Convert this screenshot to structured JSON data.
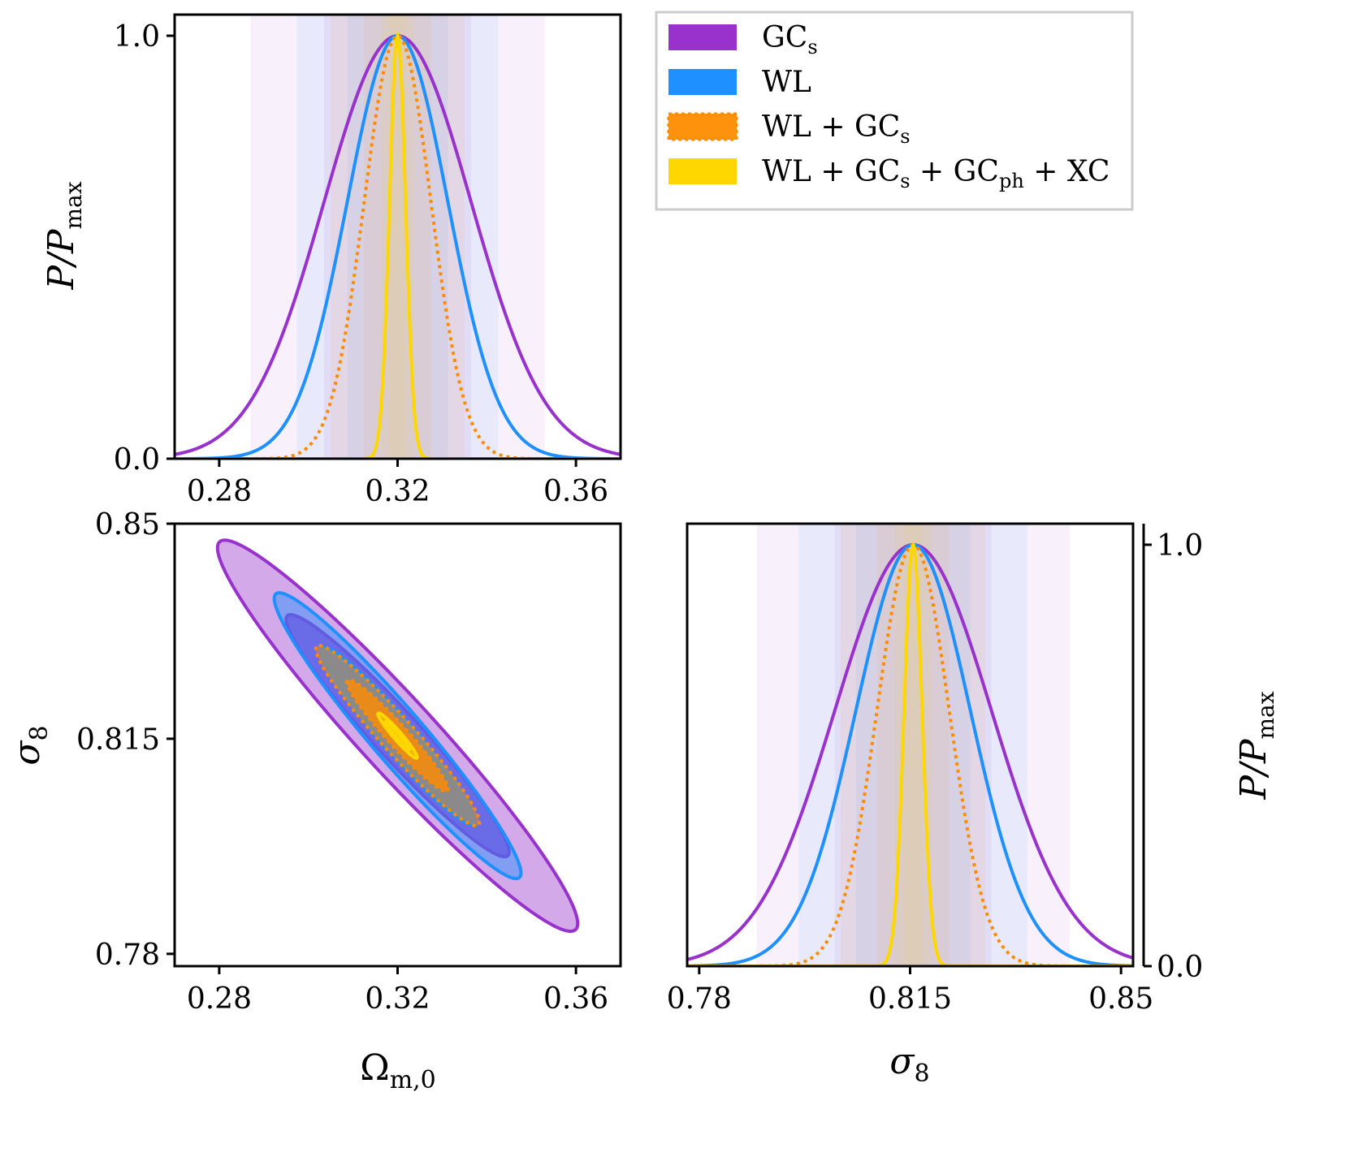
{
  "colors": {
    "gcs": "#9932CC",
    "wl": "#1E90FF",
    "wl_gcs": "#FF8C00",
    "all": "#FFD700"
  },
  "legend": {
    "entries": [
      {
        "key": "gcs",
        "main": "GC",
        "sub": "s",
        "tail": ""
      },
      {
        "key": "wl",
        "main": "WL",
        "sub": "",
        "tail": ""
      },
      {
        "key": "wl_gcs",
        "main": "WL + GC",
        "sub": "s",
        "tail": ""
      },
      {
        "key": "all",
        "main": "WL + GC",
        "sub": "s",
        "mid": " + GC",
        "sub2": "ph",
        "tail": " + XC"
      }
    ]
  },
  "chart_data": [
    {
      "type": "line",
      "panel": "top-left",
      "title": "",
      "xlabel": "",
      "ylabel": "P/Pmax",
      "ylabel_main": "P/P",
      "ylabel_sub": "max",
      "xlim": [
        0.27,
        0.37
      ],
      "ylim": [
        0.0,
        1.05
      ],
      "xticks": [
        "0.28",
        "0.32",
        "0.36"
      ],
      "yticks": [
        "0.0",
        "1.0"
      ],
      "center": 0.32,
      "series": [
        {
          "name": "GCs",
          "key": "gcs",
          "sigma": 0.0165,
          "style": "solid"
        },
        {
          "name": "WL",
          "key": "wl",
          "sigma": 0.0113,
          "style": "solid"
        },
        {
          "name": "WL + GCs",
          "key": "wl_gcs",
          "sigma": 0.0075,
          "style": "dotted"
        },
        {
          "name": "WL + GCs + GCph + XC",
          "key": "all",
          "sigma": 0.0018,
          "style": "solid"
        }
      ]
    },
    {
      "type": "contour",
      "panel": "bottom-left",
      "xlabel": "Ωm,0",
      "xlabel_main": "Ω",
      "xlabel_sub": "m,0",
      "ylabel": "σ8",
      "ylabel_main": "σ",
      "ylabel_sub": "8",
      "xlim": [
        0.27,
        0.37
      ],
      "ylim": [
        0.778,
        0.85
      ],
      "xticks": [
        "0.28",
        "0.32",
        "0.36"
      ],
      "yticks": [
        "0.78",
        "0.815",
        "0.85"
      ],
      "center": [
        0.32,
        0.8155
      ],
      "correlation": -0.96,
      "series": [
        {
          "name": "GCs",
          "key": "gcs",
          "sigma_x": 0.0165,
          "sigma_y": 0.013,
          "style": "solid"
        },
        {
          "name": "WL",
          "key": "wl",
          "sigma_x": 0.0113,
          "sigma_y": 0.0095,
          "style": "solid"
        },
        {
          "name": "WL + GCs",
          "key": "wl_gcs",
          "sigma_x": 0.0075,
          "sigma_y": 0.006,
          "style": "dotted"
        },
        {
          "name": "WL + GCs + GCph + XC",
          "key": "all",
          "sigma_x": 0.0018,
          "sigma_y": 0.0015,
          "style": "solid"
        }
      ]
    },
    {
      "type": "line",
      "panel": "bottom-right",
      "xlabel": "σ8",
      "xlabel_main": "σ",
      "xlabel_sub": "8",
      "ylabel": "P/Pmax",
      "ylabel_main": "P/P",
      "ylabel_sub": "max",
      "xlim": [
        0.778,
        0.852
      ],
      "ylim": [
        0.0,
        1.05
      ],
      "xticks": [
        "0.78",
        "0.815",
        "0.85"
      ],
      "yticks": [
        "0.0",
        "1.0"
      ],
      "center": 0.8155,
      "series": [
        {
          "name": "GCs",
          "key": "gcs",
          "sigma": 0.013,
          "style": "solid"
        },
        {
          "name": "WL",
          "key": "wl",
          "sigma": 0.0095,
          "style": "solid"
        },
        {
          "name": "WL + GCs",
          "key": "wl_gcs",
          "sigma": 0.006,
          "style": "dotted"
        },
        {
          "name": "WL + GCs + GCph + XC",
          "key": "all",
          "sigma": 0.0015,
          "style": "solid"
        }
      ]
    }
  ]
}
